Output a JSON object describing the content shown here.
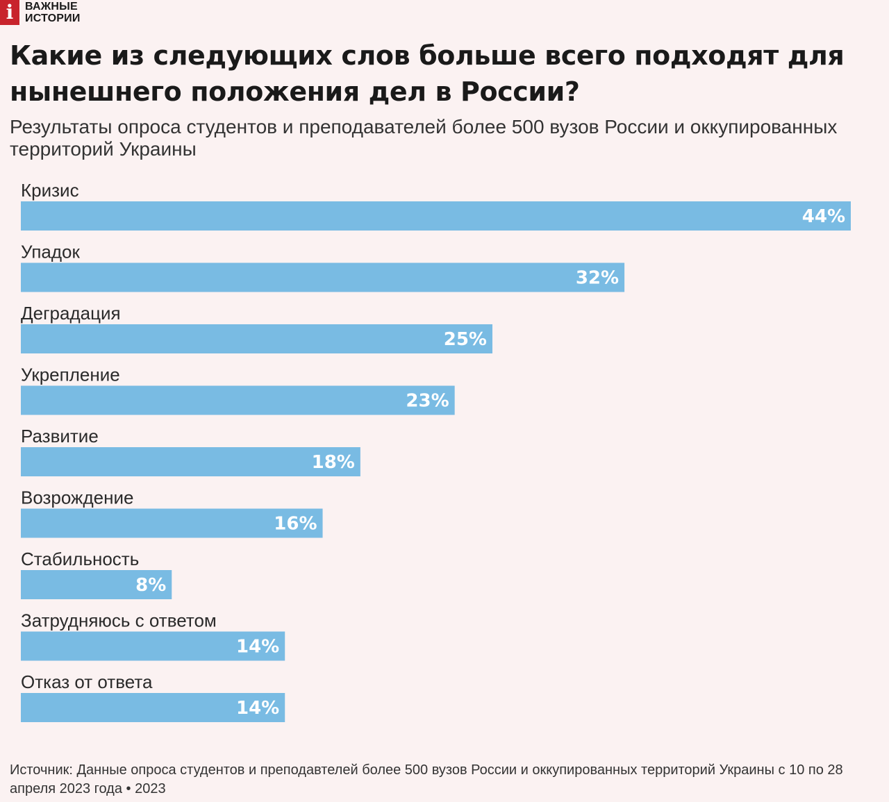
{
  "brand": {
    "logo_letter": "i",
    "name": "ВАЖНЫЕ ИСТОРИИ"
  },
  "colors": {
    "background": "#fbf2f2",
    "bar": "#79bbe3",
    "bar_label": "#ffffff",
    "logo": "#c8232c"
  },
  "chart_data": {
    "type": "bar",
    "orientation": "horizontal",
    "title": "Какие из следующих слов больше всего подходят для нынешнего положения дел в России?",
    "subtitle": "Результаты опроса студентов и преподавателей более 500 вузов России и оккупированных территорий Украины",
    "categories": [
      "Кризис",
      "Упадок",
      "Деградация",
      "Укрепление",
      "Развитие",
      "Возрождение",
      "Стабильность",
      "Затрудняюсь с ответом",
      "Отказ от ответа"
    ],
    "values": [
      44,
      32,
      25,
      23,
      18,
      16,
      8,
      14,
      14
    ],
    "data_labels": [
      "44%",
      "32%",
      "25%",
      "23%",
      "18%",
      "16%",
      "8%",
      "14%",
      "14%"
    ],
    "unit": "%",
    "xlim": [
      0,
      44
    ],
    "grid": false,
    "legend": "none"
  },
  "source": "Источник: Данные опроса студентов и преподавтелей более 500 вузов России и оккупированных территорий Украины с 10 по 28 апреля 2023 года • 2023"
}
